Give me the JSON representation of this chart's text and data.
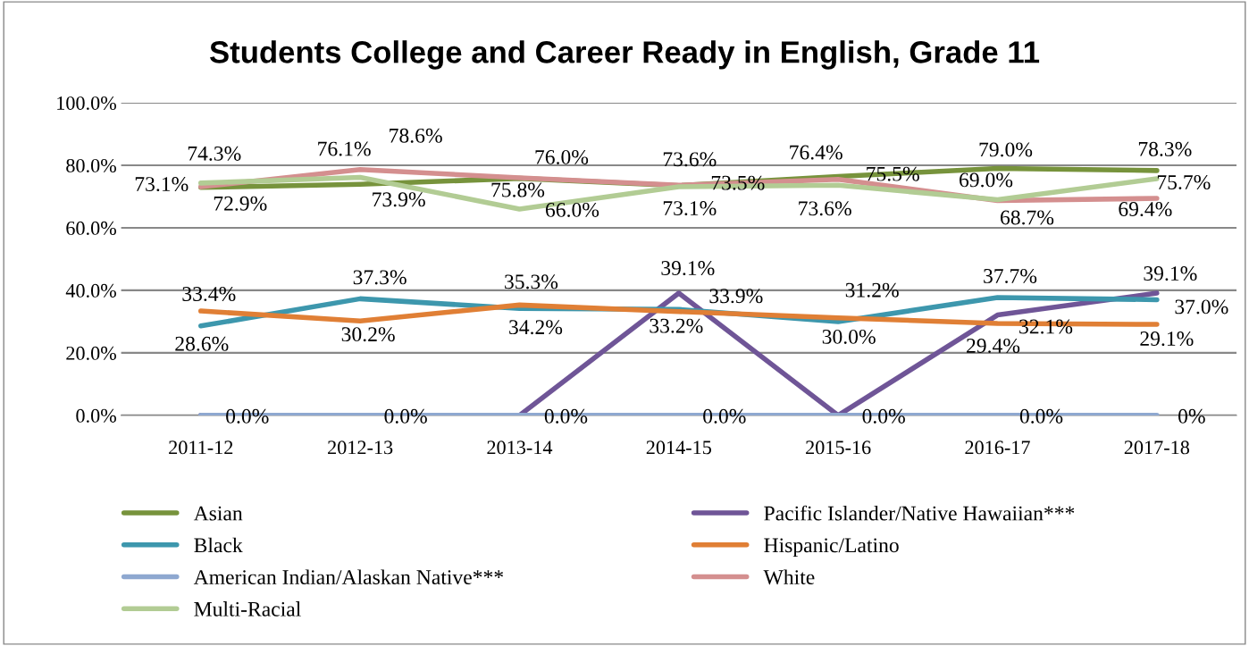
{
  "chart_data": {
    "type": "line",
    "title": "Students College and Career Ready in English, Grade 11",
    "categories": [
      "2011-12",
      "2012-13",
      "2013-14",
      "2014-15",
      "2015-16",
      "2016-17",
      "2017-18"
    ],
    "series": [
      {
        "name": "Asian",
        "color": "#77933c",
        "values": [
          72.9,
          73.9,
          75.8,
          73.5,
          76.4,
          79.0,
          78.3
        ],
        "value_labels": [
          "72.9%",
          "73.9%",
          "75.8%",
          "73.5%",
          "76.4%",
          "79.0%",
          "78.3%"
        ]
      },
      {
        "name": "Pacific Islander/Native Hawaiian***",
        "color": "#6f5597",
        "values": [
          0,
          0,
          0,
          39.1,
          0,
          32.1,
          39.1
        ],
        "value_labels": [
          null,
          null,
          null,
          "39.1%",
          null,
          "32.1%",
          "39.1%"
        ]
      },
      {
        "name": "Black",
        "color": "#3d97ad",
        "values": [
          28.6,
          37.3,
          34.2,
          33.9,
          30.0,
          37.7,
          37.0
        ],
        "value_labels": [
          "28.6%",
          "37.3%",
          "34.2%",
          "33.9%",
          "30.0%",
          "37.7%",
          "37.0%"
        ]
      },
      {
        "name": "Hispanic/Latino",
        "color": "#e07f35",
        "values": [
          33.4,
          30.2,
          35.3,
          33.2,
          31.2,
          29.4,
          29.1
        ],
        "value_labels": [
          "33.4%",
          "30.2%",
          "35.3%",
          "33.2%",
          "31.2%",
          "29.4%",
          "29.1%"
        ]
      },
      {
        "name": "American Indian/Alaskan Native***",
        "color": "#8ea8d0",
        "values": [
          0,
          0,
          0,
          0,
          0,
          0,
          0
        ],
        "value_labels": [
          "0.0%",
          "0.0%",
          "0.0%",
          "0.0%",
          "0.0%",
          "0.0%",
          "0%"
        ]
      },
      {
        "name": "White",
        "color": "#d48f8f",
        "values": [
          73.1,
          78.6,
          76.0,
          73.6,
          75.5,
          68.7,
          69.4
        ],
        "value_labels": [
          "73.1%",
          "78.6%",
          "76.0%",
          "73.6%",
          "75.5%",
          "68.7%",
          "69.4%"
        ]
      },
      {
        "name": "Multi-Racial",
        "color": "#b2cc94",
        "values": [
          74.3,
          76.1,
          66.0,
          73.1,
          73.6,
          69.0,
          75.7
        ],
        "value_labels": [
          "74.3%",
          "76.1%",
          "66.0%",
          "73.1%",
          "73.6%",
          "69.0%",
          "75.7%"
        ]
      }
    ],
    "ylim": [
      0,
      100
    ],
    "yticks": [
      {
        "value": 0,
        "label": "0.0%"
      },
      {
        "value": 20,
        "label": "20.0%"
      },
      {
        "value": 40,
        "label": "40.0%"
      },
      {
        "value": 60,
        "label": "60.0%"
      },
      {
        "value": 80,
        "label": "80.0%"
      },
      {
        "value": 100,
        "label": "100.0%"
      }
    ],
    "grid": "y",
    "legend": "bottom",
    "marker": "none",
    "line_style": "solid"
  }
}
